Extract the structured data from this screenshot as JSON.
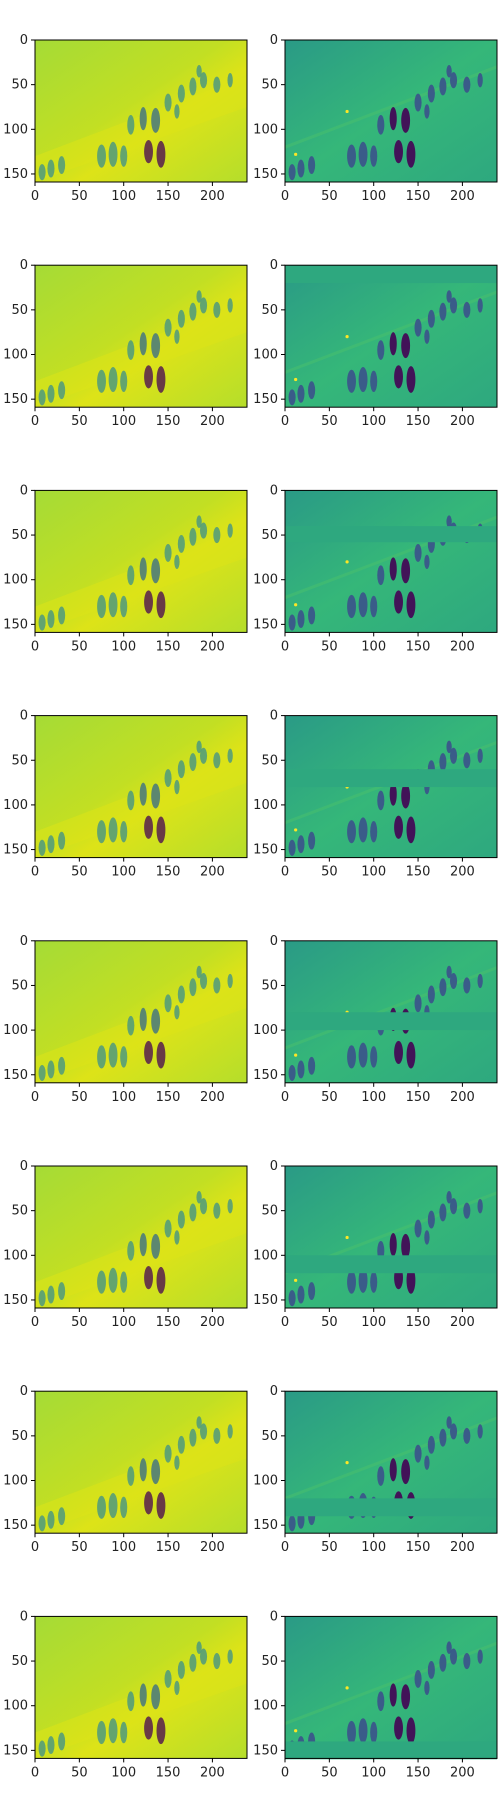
{
  "chart_data": {
    "type": "heatmap",
    "layout": {
      "rows": 8,
      "cols": 2
    },
    "colormap": "viridis",
    "colors": {
      "left_background": "#b9dc3c",
      "left_bright": "#dde318",
      "right_background": "#2ea87f",
      "figure_dark": "#440154",
      "figure_mid": "#3b528b",
      "highlight": "#fde725"
    },
    "xlim": [
      0,
      239
    ],
    "ylim": [
      159,
      0
    ],
    "xticks": [
      0,
      50,
      100,
      150,
      200
    ],
    "yticks": [
      0,
      50,
      100,
      150
    ],
    "panel_grid": "off",
    "rows": [
      {
        "row": 1,
        "left": "smooth reconstruction",
        "right": "detail map, no masked band",
        "masked_band_y": null
      },
      {
        "row": 2,
        "left": "smooth reconstruction",
        "right": "detail map with masked band",
        "masked_band_y": [
          0,
          20
        ]
      },
      {
        "row": 3,
        "left": "smooth reconstruction",
        "right": "detail map with masked band",
        "masked_band_y": [
          40,
          58
        ]
      },
      {
        "row": 4,
        "left": "smooth reconstruction",
        "right": "detail map with masked band",
        "masked_band_y": [
          60,
          80
        ]
      },
      {
        "row": 5,
        "left": "smooth reconstruction",
        "right": "detail map with masked band",
        "masked_band_y": [
          80,
          100
        ]
      },
      {
        "row": 6,
        "left": "smooth reconstruction",
        "right": "detail map with masked band",
        "masked_band_y": [
          100,
          120
        ]
      },
      {
        "row": 7,
        "left": "smooth reconstruction",
        "right": "detail map with masked band",
        "masked_band_y": [
          120,
          140
        ]
      },
      {
        "row": 8,
        "left": "smooth reconstruction",
        "right": "detail map with masked band",
        "masked_band_y": [
          140,
          160
        ]
      }
    ]
  }
}
